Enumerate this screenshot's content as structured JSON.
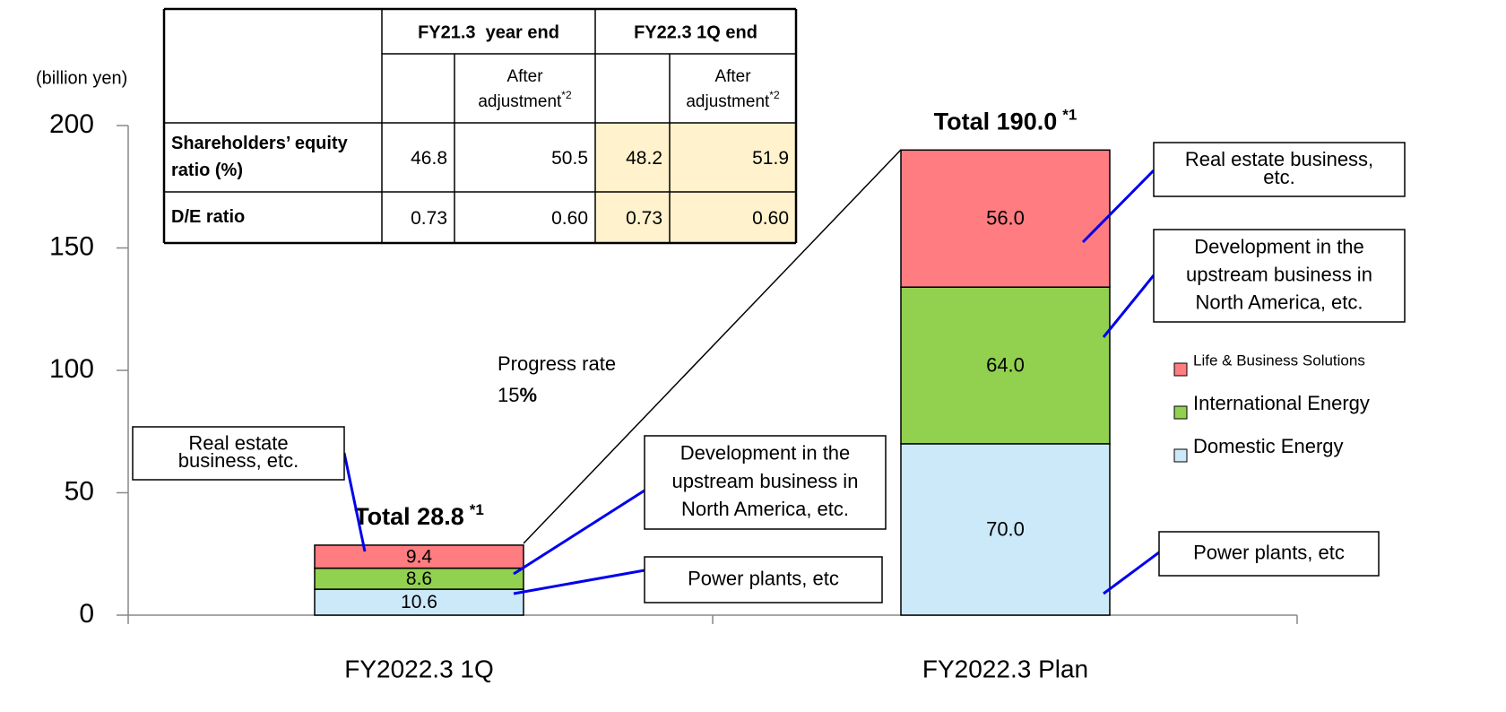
{
  "chart_data": {
    "type": "bar",
    "stacked": true,
    "y_label": "(billion yen)",
    "categories": [
      "FY2022.3 1Q",
      "FY2022.3 Plan"
    ],
    "series": [
      {
        "name": "Domestic Energy",
        "color": "#cce9fa",
        "values": [
          10.6,
          70.0
        ],
        "value_labels": [
          "10.6",
          "70.0"
        ]
      },
      {
        "name": "International Energy",
        "color": "#92d050",
        "values": [
          8.6,
          64.0
        ],
        "value_labels": [
          "8.6",
          "64.0"
        ]
      },
      {
        "name": "Life & Business Solutions",
        "color": "#ff7c80",
        "values": [
          9.4,
          56.0
        ],
        "value_labels": [
          "9.4",
          "56.0"
        ]
      }
    ],
    "ylim": [
      0,
      200
    ],
    "yticks": [
      0,
      50,
      100,
      150,
      200
    ],
    "grid": false,
    "legend": "right",
    "totals": [
      {
        "label": "Total 28.8",
        "note": "*1"
      },
      {
        "label": "Total 190.0",
        "note": "*1"
      }
    ],
    "progress": {
      "label": "Progress rate",
      "value": "15",
      "unit": "%"
    },
    "callouts": [
      {
        "lines": [
          "Real estate",
          "business, etc."
        ]
      },
      {
        "lines": [
          "Development in the",
          "upstream business in",
          "North America, etc."
        ]
      },
      {
        "lines": [
          "Power plants, etc"
        ]
      },
      {
        "lines": [
          "Real estate business,",
          "etc."
        ]
      },
      {
        "lines": [
          "Development in the",
          "upstream business in",
          "North America, etc."
        ]
      },
      {
        "lines": [
          "Power plants, etc"
        ]
      }
    ]
  },
  "table": {
    "header": [
      "FY21.3  year end",
      "FY22.3 1Q end"
    ],
    "subheader": {
      "lines": [
        "After",
        "adjustment"
      ],
      "note": "*2"
    },
    "highlight_color": "#fff2cc",
    "rows": [
      {
        "label": [
          "Shareholders’ equity",
          "ratio (%)"
        ],
        "cells": [
          "46.8",
          "50.5",
          "48.2",
          "51.9"
        ]
      },
      {
        "label": [
          "D/E ratio"
        ],
        "cells": [
          "0.73",
          "0.60",
          "0.73",
          "0.60"
        ]
      }
    ]
  }
}
